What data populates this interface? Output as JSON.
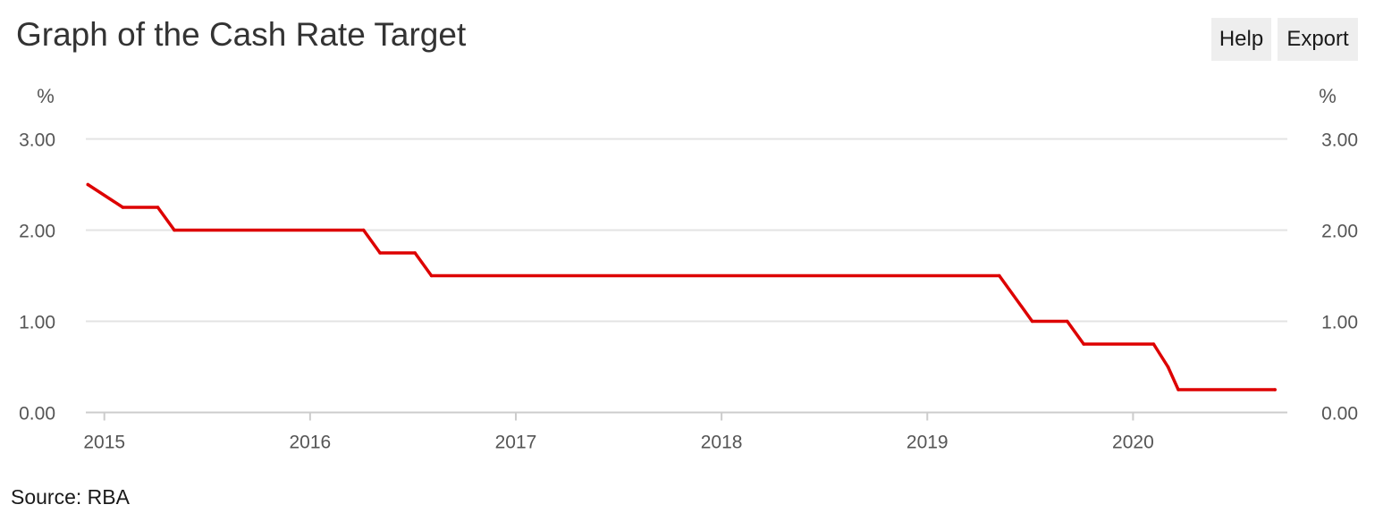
{
  "header": {
    "title": "Graph of the Cash Rate Target",
    "help_label": "Help",
    "export_label": "Export"
  },
  "footer": {
    "source": "Source: RBA"
  },
  "colors": {
    "series": "#dd0000",
    "grid": "#e3e3e3",
    "axis": "#cccccc",
    "button_bg": "#eeeeee"
  },
  "chart_data": {
    "type": "line",
    "title": "Graph of the Cash Rate Target",
    "unit_left": "%",
    "unit_right": "%",
    "xlabel": "",
    "ylabel": "%",
    "ylim": [
      0,
      3
    ],
    "yticks": [
      0,
      1,
      2,
      3
    ],
    "ytick_labels": [
      "0.00",
      "1.00",
      "2.00",
      "3.00"
    ],
    "xticks": [
      2015,
      2016,
      2017,
      2018,
      2019,
      2020
    ],
    "xtick_labels": [
      "2015",
      "2016",
      "2017",
      "2018",
      "2019",
      "2020"
    ],
    "xlim": [
      2014.91,
      2020.75
    ],
    "grid": true,
    "legend": "none",
    "series": [
      {
        "points": [
          {
            "x": 2014.92,
            "y": 2.5
          },
          {
            "x": 2015.09,
            "y": 2.25
          },
          {
            "x": 2015.26,
            "y": 2.25
          },
          {
            "x": 2015.34,
            "y": 2.0
          },
          {
            "x": 2016.26,
            "y": 2.0
          },
          {
            "x": 2016.34,
            "y": 1.75
          },
          {
            "x": 2016.51,
            "y": 1.75
          },
          {
            "x": 2016.59,
            "y": 1.5
          },
          {
            "x": 2019.35,
            "y": 1.5
          },
          {
            "x": 2019.51,
            "y": 1.0
          },
          {
            "x": 2019.68,
            "y": 1.0
          },
          {
            "x": 2019.76,
            "y": 0.75
          },
          {
            "x": 2020.1,
            "y": 0.75
          },
          {
            "x": 2020.17,
            "y": 0.5
          },
          {
            "x": 2020.22,
            "y": 0.25
          },
          {
            "x": 2020.69,
            "y": 0.25
          }
        ]
      }
    ]
  }
}
